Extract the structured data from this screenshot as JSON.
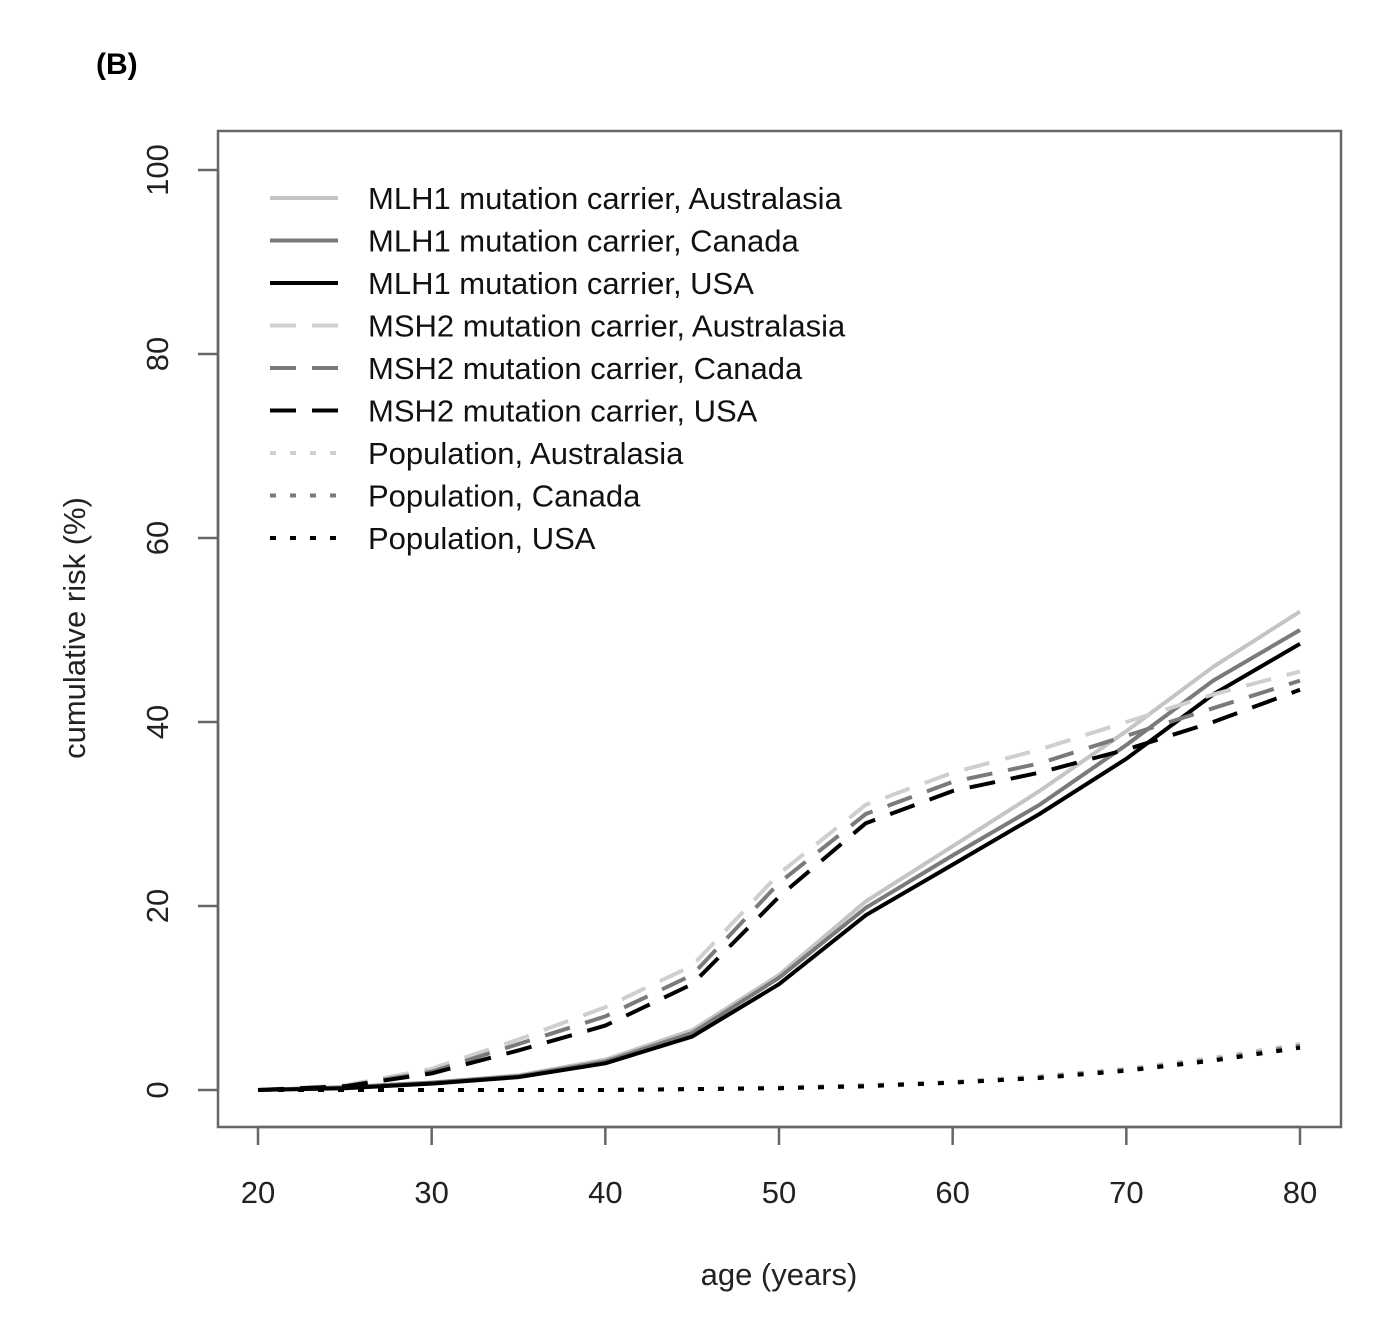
{
  "chart_data": {
    "type": "line",
    "panel_label": "(B)",
    "xlabel": "age (years)",
    "ylabel": "cumulative risk (%)",
    "xlim": [
      20,
      80
    ],
    "ylim": [
      0,
      100
    ],
    "xticks": [
      20,
      30,
      40,
      50,
      60,
      70,
      80
    ],
    "yticks": [
      0,
      20,
      40,
      60,
      80,
      100
    ],
    "grid": false,
    "legend_position": "top-left",
    "x": [
      20,
      25,
      30,
      35,
      40,
      45,
      50,
      55,
      60,
      65,
      70,
      75,
      80
    ],
    "series": [
      {
        "name": "MLH1 mutation carrier, Australasia",
        "color": "#c4c4c4",
        "style": "solid",
        "values": [
          0,
          0.3,
          0.8,
          1.6,
          3.3,
          6.5,
          12.5,
          20.5,
          26.5,
          32.5,
          39.0,
          46.0,
          52.0
        ]
      },
      {
        "name": "MLH1 mutation carrier, Canada",
        "color": "#7a7a7a",
        "style": "solid",
        "values": [
          0,
          0.3,
          0.8,
          1.5,
          3.1,
          6.2,
          12.2,
          19.8,
          25.5,
          31.0,
          37.5,
          44.5,
          50.0
        ]
      },
      {
        "name": "MLH1 mutation carrier, USA",
        "color": "#000000",
        "style": "solid",
        "values": [
          0,
          0.2,
          0.7,
          1.4,
          2.9,
          5.8,
          11.5,
          19.0,
          24.5,
          30.0,
          36.0,
          43.0,
          48.5
        ]
      },
      {
        "name": "MSH2 mutation carrier, Australasia",
        "color": "#cfcfcf",
        "style": "dashed",
        "values": [
          0,
          0.5,
          2.3,
          5.5,
          9.0,
          13.5,
          23.5,
          31.0,
          34.5,
          37.0,
          40.0,
          43.0,
          45.5
        ]
      },
      {
        "name": "MSH2 mutation carrier, Canada",
        "color": "#7a7a7a",
        "style": "dashed",
        "values": [
          0,
          0.4,
          2.0,
          5.0,
          8.0,
          12.5,
          22.5,
          30.0,
          33.5,
          35.5,
          38.5,
          41.5,
          44.5
        ]
      },
      {
        "name": "MSH2 mutation carrier, USA",
        "color": "#000000",
        "style": "dashed",
        "values": [
          0,
          0.4,
          1.8,
          4.3,
          7.0,
          11.5,
          21.0,
          29.0,
          32.5,
          34.5,
          37.0,
          40.0,
          43.5
        ]
      },
      {
        "name": "Population, Australasia",
        "color": "#cfcfcf",
        "style": "dotted",
        "values": [
          0,
          0,
          0,
          0,
          0,
          0.1,
          0.3,
          0.5,
          0.9,
          1.5,
          2.3,
          3.5,
          5.0
        ]
      },
      {
        "name": "Population, Canada",
        "color": "#7a7a7a",
        "style": "dotted",
        "values": [
          0,
          0,
          0,
          0,
          0,
          0.1,
          0.2,
          0.5,
          0.8,
          1.4,
          2.2,
          3.3,
          4.8
        ]
      },
      {
        "name": "Population, USA",
        "color": "#000000",
        "style": "dotted",
        "values": [
          0,
          0,
          0,
          0,
          0,
          0.1,
          0.2,
          0.4,
          0.8,
          1.3,
          2.1,
          3.2,
          4.6
        ]
      }
    ]
  }
}
